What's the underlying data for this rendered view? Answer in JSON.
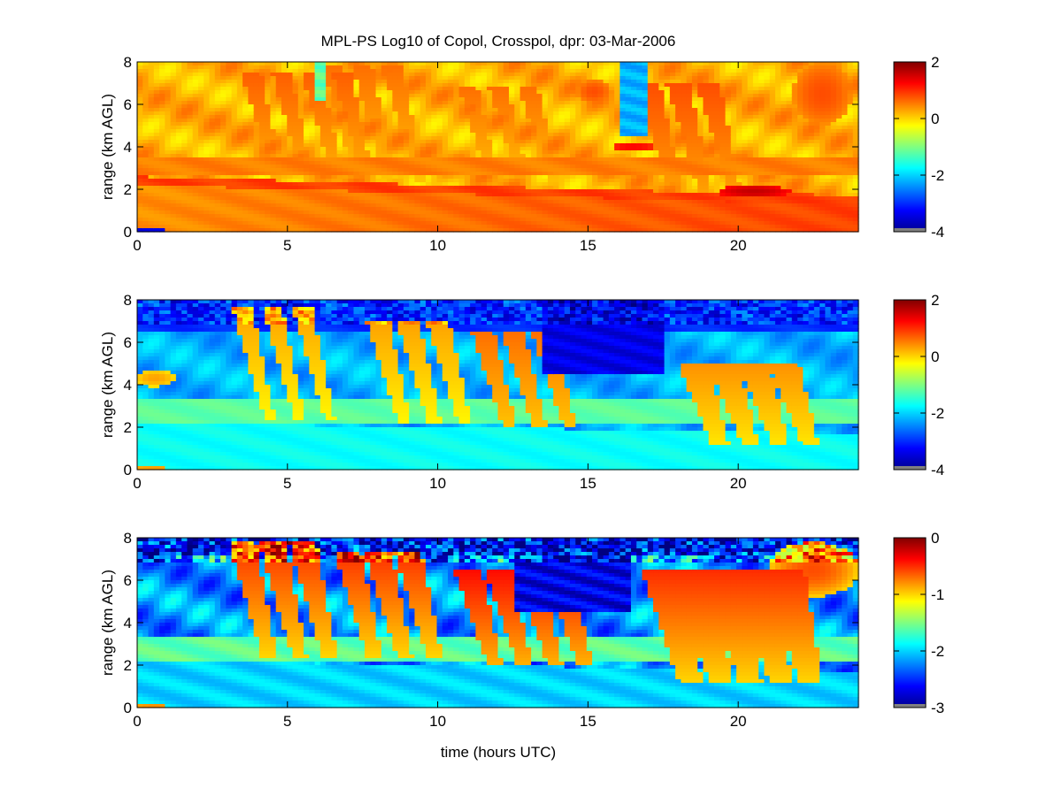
{
  "figure": {
    "title": "MPL-PS Log10 of Copol, Crosspol, dpr: 03-Mar-2006",
    "xlabel": "time (hours UTC)"
  },
  "colors": {
    "jet": [
      "#00008f",
      "#0000ff",
      "#0080ff",
      "#00ffff",
      "#80ff80",
      "#ffff00",
      "#ff8000",
      "#ff0000",
      "#800000"
    ],
    "nodata": "#808080",
    "axis": "#000000"
  },
  "chart_data": [
    {
      "type": "heatmap",
      "name": "copol",
      "ylabel": "range (km AGL)",
      "xlim": [
        0,
        24
      ],
      "ylim": [
        0,
        8
      ],
      "xticks": [
        0,
        5,
        10,
        15,
        20
      ],
      "yticks": [
        0,
        2,
        4,
        6,
        8
      ],
      "colorbar": {
        "range": [
          -4,
          2
        ],
        "ticks": [
          -4,
          -2,
          0,
          2
        ]
      },
      "background_value": 0.2,
      "layers": [
        {
          "kind": "band",
          "y0": 0,
          "y1": 0.1,
          "v": -3.5
        },
        {
          "kind": "band",
          "y0": 0.1,
          "y1": 2.2,
          "v": 0.4,
          "slope_y": -0.02,
          "slope_v": 0.02
        },
        {
          "kind": "band",
          "y0": 2.2,
          "y1": 2.6,
          "v": 0.9,
          "slope_y": -0.04
        },
        {
          "kind": "band",
          "y0": 2.6,
          "y1": 3.5,
          "v": 0.5
        }
      ],
      "features": [
        {
          "kind": "streak",
          "t0": 3.8,
          "t1": 7.5,
          "y_top": 7.5,
          "y_bottom": 2.4,
          "width": 0.5,
          "v": 0.7
        },
        {
          "kind": "streak",
          "t0": 6.5,
          "t1": 9.5,
          "y_top": 7.8,
          "y_bottom": 2.4,
          "width": 0.5,
          "v": 0.6
        },
        {
          "kind": "streak",
          "t0": 11,
          "t1": 14,
          "y_top": 6.8,
          "y_bottom": 2.2,
          "width": 0.5,
          "v": 0.6
        },
        {
          "kind": "streak",
          "t0": 17,
          "t1": 19.5,
          "y_top": 7,
          "y_bottom": 1.8,
          "width": 0.6,
          "v": 0.8
        },
        {
          "kind": "blob",
          "t": 15.2,
          "y": 6.6,
          "rt": 0.6,
          "ry": 0.6,
          "v": 0.8
        },
        {
          "kind": "blob",
          "t": 16.5,
          "y": 4.0,
          "rt": 0.9,
          "ry": 0.12,
          "v": 1.4
        },
        {
          "kind": "blob",
          "t": 20.5,
          "y": 1.9,
          "rt": 1.2,
          "ry": 0.3,
          "v": 1.6
        },
        {
          "kind": "blob",
          "t": 22.8,
          "y": 6.5,
          "rt": 1.0,
          "ry": 1.5,
          "v": 0.8
        },
        {
          "kind": "column",
          "t0": 16.1,
          "t1": 16.9,
          "y0": 4.5,
          "y1": 8,
          "v": -2.2
        },
        {
          "kind": "column",
          "t0": 5.9,
          "t1": 6.3,
          "y0": 6.2,
          "y1": 8,
          "v": -1.2
        }
      ]
    },
    {
      "type": "heatmap",
      "name": "crosspol",
      "ylabel": "range (km AGL)",
      "xlim": [
        0,
        24
      ],
      "ylim": [
        0,
        8
      ],
      "xticks": [
        0,
        5,
        10,
        15,
        20
      ],
      "yticks": [
        0,
        2,
        4,
        6,
        8
      ],
      "colorbar": {
        "range": [
          -4,
          2
        ],
        "ticks": [
          -4,
          -2,
          0,
          2
        ]
      },
      "background_value": -2.2,
      "layers": [
        {
          "kind": "band",
          "y0": 0,
          "y1": 0.1,
          "v": 0.2
        },
        {
          "kind": "band",
          "y0": 0.1,
          "y1": 2.2,
          "v": -1.7,
          "slope_y": -0.02
        },
        {
          "kind": "band",
          "y0": 2.2,
          "y1": 3.4,
          "v": -1.2
        },
        {
          "kind": "band",
          "y0": 6.5,
          "y1": 8,
          "v": -3.0
        }
      ],
      "features": [
        {
          "kind": "streak",
          "t0": 3.5,
          "t1": 6.5,
          "y_top": 7.6,
          "y_bottom": 2.4,
          "width": 0.5,
          "v": 0.3
        },
        {
          "kind": "streak",
          "t0": 8,
          "t1": 10.5,
          "y_top": 7,
          "y_bottom": 2.2,
          "width": 0.6,
          "v": 0.3
        },
        {
          "kind": "streak",
          "t0": 11.5,
          "t1": 14.5,
          "y_top": 6.5,
          "y_bottom": 2.0,
          "width": 0.6,
          "v": 0.6
        },
        {
          "kind": "streak",
          "t0": 18.5,
          "t1": 22.5,
          "y_top": 5,
          "y_bottom": 1.2,
          "width": 0.8,
          "v": 0.4
        },
        {
          "kind": "blob",
          "t": 15.3,
          "y": 6.6,
          "rt": 0.6,
          "ry": 0.6,
          "v": 0.4
        },
        {
          "kind": "blob",
          "t": 0.6,
          "y": 4.3,
          "rt": 0.7,
          "ry": 0.4,
          "v": 0.3
        },
        {
          "kind": "column",
          "t0": 13.5,
          "t1": 17.5,
          "y0": 4.5,
          "y1": 8,
          "v": -3.4
        }
      ]
    },
    {
      "type": "heatmap",
      "name": "depolarization ratio",
      "ylabel": "range (km AGL)",
      "xlim": [
        0,
        24
      ],
      "ylim": [
        0,
        8
      ],
      "xticks": [
        0,
        5,
        10,
        15,
        20
      ],
      "yticks": [
        0,
        2,
        4,
        6,
        8
      ],
      "colorbar": {
        "range": [
          -3,
          0
        ],
        "ticks": [
          -3,
          -2,
          -1,
          0
        ]
      },
      "background_value": -2.2,
      "layers": [
        {
          "kind": "band",
          "y0": 0,
          "y1": 0.1,
          "v": -0.9
        },
        {
          "kind": "band",
          "y0": 0.1,
          "y1": 2.2,
          "v": -2.0,
          "slope_y": -0.02
        },
        {
          "kind": "band",
          "y0": 2.2,
          "y1": 3.4,
          "v": -1.6
        },
        {
          "kind": "band",
          "y0": 7.2,
          "y1": 8,
          "v": -2.6
        }
      ],
      "features": [
        {
          "kind": "streak",
          "t0": 3.5,
          "t1": 6.5,
          "y_top": 7.8,
          "y_bottom": 2.4,
          "width": 0.7,
          "v": -0.5
        },
        {
          "kind": "streak",
          "t0": 7,
          "t1": 10,
          "y_top": 7.4,
          "y_bottom": 2.4,
          "width": 0.7,
          "v": -0.5
        },
        {
          "kind": "streak",
          "t0": 11,
          "t1": 14.5,
          "y_top": 6.5,
          "y_bottom": 2.0,
          "width": 0.7,
          "v": -0.4
        },
        {
          "kind": "streak",
          "t0": 17.5,
          "t1": 22.5,
          "y_top": 6.5,
          "y_bottom": 1.2,
          "width": 1.1,
          "v": -0.5
        },
        {
          "kind": "blob",
          "t": 15.0,
          "y": 6.5,
          "rt": 0.8,
          "ry": 0.7,
          "v": -0.5
        },
        {
          "kind": "blob",
          "t": 22.5,
          "y": 6.5,
          "rt": 1.5,
          "ry": 1.3,
          "v": -0.6
        },
        {
          "kind": "column",
          "t0": 12.5,
          "t1": 16.5,
          "y0": 4.5,
          "y1": 8,
          "v": -2.7
        }
      ]
    }
  ]
}
